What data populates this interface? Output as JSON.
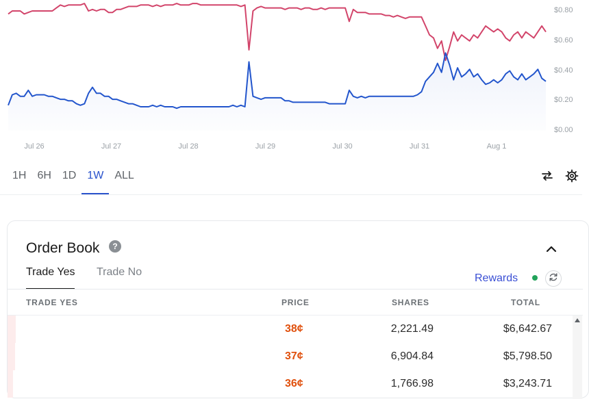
{
  "chart_data": {
    "type": "line",
    "x_ticks": [
      "Jul 26",
      "Jul 27",
      "Jul 28",
      "Jul 29",
      "Jul 30",
      "Jul 31",
      "Aug 1"
    ],
    "y_ticks": [
      "$0.00",
      "$0.20",
      "$0.40",
      "$0.60",
      "$0.80"
    ],
    "ylim": [
      0,
      0.8
    ],
    "x_points": [
      0,
      0.05,
      0.1,
      0.15,
      0.2,
      0.25,
      0.3,
      0.35,
      0.4,
      0.45,
      0.5,
      0.55,
      0.6,
      0.65,
      0.7,
      0.75,
      0.8,
      0.85,
      0.9,
      0.95,
      1.0,
      1.05,
      1.1,
      1.15,
      1.2,
      1.25,
      1.3,
      1.35,
      1.4,
      1.45,
      1.5,
      1.55,
      1.6,
      1.65,
      1.7,
      1.75,
      1.8,
      1.85,
      1.9,
      1.95,
      2.0,
      2.05,
      2.1,
      2.15,
      2.2,
      2.25,
      2.3,
      2.35,
      2.4,
      2.45,
      2.5,
      2.55,
      2.6,
      2.65,
      2.7,
      2.75,
      2.8,
      2.85,
      2.9,
      2.95,
      3.0,
      3.05,
      3.1,
      3.15,
      3.2,
      3.25,
      3.3,
      3.35,
      3.4,
      3.45,
      3.5,
      3.55,
      3.6,
      3.65,
      3.7,
      3.75,
      3.8,
      3.85,
      3.9,
      3.95,
      4.0,
      4.05,
      4.1,
      4.15,
      4.2,
      4.25,
      4.3,
      4.35,
      4.4,
      4.45,
      4.5,
      4.55,
      4.6,
      4.65,
      4.7,
      4.75,
      4.8,
      4.85,
      4.9,
      4.95,
      5.0,
      5.05,
      5.1,
      5.15,
      5.2,
      5.25,
      5.3,
      5.35,
      5.4,
      5.45,
      5.5,
      5.55,
      5.6,
      5.65,
      5.7,
      5.75,
      5.8,
      5.85,
      5.9,
      5.95,
      6.0,
      6.05,
      6.1,
      6.15,
      6.2,
      6.25,
      6.3,
      6.35,
      6.4,
      6.45,
      6.5,
      6.55,
      6.6,
      6.65,
      6.7
    ],
    "series": [
      {
        "color": "#d2446a",
        "values": [
          0.78,
          0.8,
          0.8,
          0.8,
          0.78,
          0.79,
          0.8,
          0.8,
          0.8,
          0.8,
          0.8,
          0.8,
          0.82,
          0.84,
          0.83,
          0.84,
          0.84,
          0.84,
          0.84,
          0.85,
          0.8,
          0.81,
          0.8,
          0.81,
          0.81,
          0.79,
          0.79,
          0.81,
          0.81,
          0.82,
          0.83,
          0.83,
          0.83,
          0.84,
          0.84,
          0.84,
          0.83,
          0.84,
          0.83,
          0.84,
          0.84,
          0.84,
          0.85,
          0.84,
          0.84,
          0.84,
          0.85,
          0.85,
          0.84,
          0.84,
          0.84,
          0.84,
          0.84,
          0.84,
          0.84,
          0.84,
          0.84,
          0.84,
          0.83,
          0.84,
          0.54,
          0.8,
          0.82,
          0.83,
          0.82,
          0.82,
          0.82,
          0.82,
          0.82,
          0.81,
          0.82,
          0.82,
          0.82,
          0.81,
          0.82,
          0.82,
          0.81,
          0.81,
          0.82,
          0.81,
          0.82,
          0.82,
          0.82,
          0.82,
          0.82,
          0.73,
          0.81,
          0.79,
          0.79,
          0.79,
          0.78,
          0.78,
          0.78,
          0.78,
          0.77,
          0.77,
          0.76,
          0.77,
          0.76,
          0.75,
          0.76,
          0.76,
          0.76,
          0.76,
          0.7,
          0.64,
          0.62,
          0.55,
          0.6,
          0.47,
          0.56,
          0.66,
          0.6,
          0.64,
          0.62,
          0.6,
          0.64,
          0.62,
          0.66,
          0.7,
          0.68,
          0.66,
          0.68,
          0.66,
          0.62,
          0.6,
          0.64,
          0.66,
          0.62,
          0.66,
          0.64,
          0.62,
          0.66,
          0.7,
          0.66
        ]
      },
      {
        "color": "#2255cc",
        "values": [
          0.17,
          0.24,
          0.25,
          0.23,
          0.23,
          0.27,
          0.23,
          0.24,
          0.24,
          0.24,
          0.23,
          0.23,
          0.22,
          0.21,
          0.21,
          0.2,
          0.2,
          0.18,
          0.17,
          0.18,
          0.25,
          0.29,
          0.25,
          0.25,
          0.23,
          0.23,
          0.21,
          0.21,
          0.2,
          0.19,
          0.18,
          0.18,
          0.17,
          0.16,
          0.16,
          0.16,
          0.17,
          0.16,
          0.17,
          0.16,
          0.16,
          0.16,
          0.15,
          0.16,
          0.16,
          0.16,
          0.16,
          0.16,
          0.16,
          0.16,
          0.16,
          0.16,
          0.16,
          0.16,
          0.16,
          0.16,
          0.17,
          0.16,
          0.17,
          0.16,
          0.46,
          0.23,
          0.22,
          0.21,
          0.22,
          0.22,
          0.22,
          0.22,
          0.22,
          0.2,
          0.2,
          0.19,
          0.19,
          0.19,
          0.19,
          0.19,
          0.19,
          0.19,
          0.19,
          0.19,
          0.18,
          0.18,
          0.18,
          0.18,
          0.18,
          0.27,
          0.23,
          0.22,
          0.23,
          0.22,
          0.23,
          0.23,
          0.23,
          0.23,
          0.23,
          0.23,
          0.23,
          0.23,
          0.23,
          0.23,
          0.23,
          0.23,
          0.24,
          0.26,
          0.33,
          0.36,
          0.39,
          0.45,
          0.39,
          0.52,
          0.44,
          0.34,
          0.42,
          0.36,
          0.38,
          0.41,
          0.36,
          0.38,
          0.34,
          0.31,
          0.32,
          0.34,
          0.32,
          0.34,
          0.38,
          0.4,
          0.36,
          0.34,
          0.38,
          0.34,
          0.36,
          0.38,
          0.41,
          0.35,
          0.33
        ]
      }
    ]
  },
  "range_tabs": [
    "1H",
    "6H",
    "1D",
    "1W",
    "ALL"
  ],
  "order_book": {
    "title": "Order Book",
    "help": "?",
    "tab_yes": "Trade Yes",
    "tab_no": "Trade No",
    "rewards": "Rewards",
    "headers": {
      "side": "TRADE YES",
      "price": "PRICE",
      "shares": "SHARES",
      "total": "TOTAL"
    },
    "rows": [
      {
        "price": "38¢",
        "shares": "2,221.49",
        "total": "$6,642.67",
        "depth": 0.015
      },
      {
        "price": "37¢",
        "shares": "6,904.84",
        "total": "$5,798.50",
        "depth": 0.013
      },
      {
        "price": "36¢",
        "shares": "1,766.98",
        "total": "$3,243.71",
        "depth": 0.01
      }
    ]
  }
}
